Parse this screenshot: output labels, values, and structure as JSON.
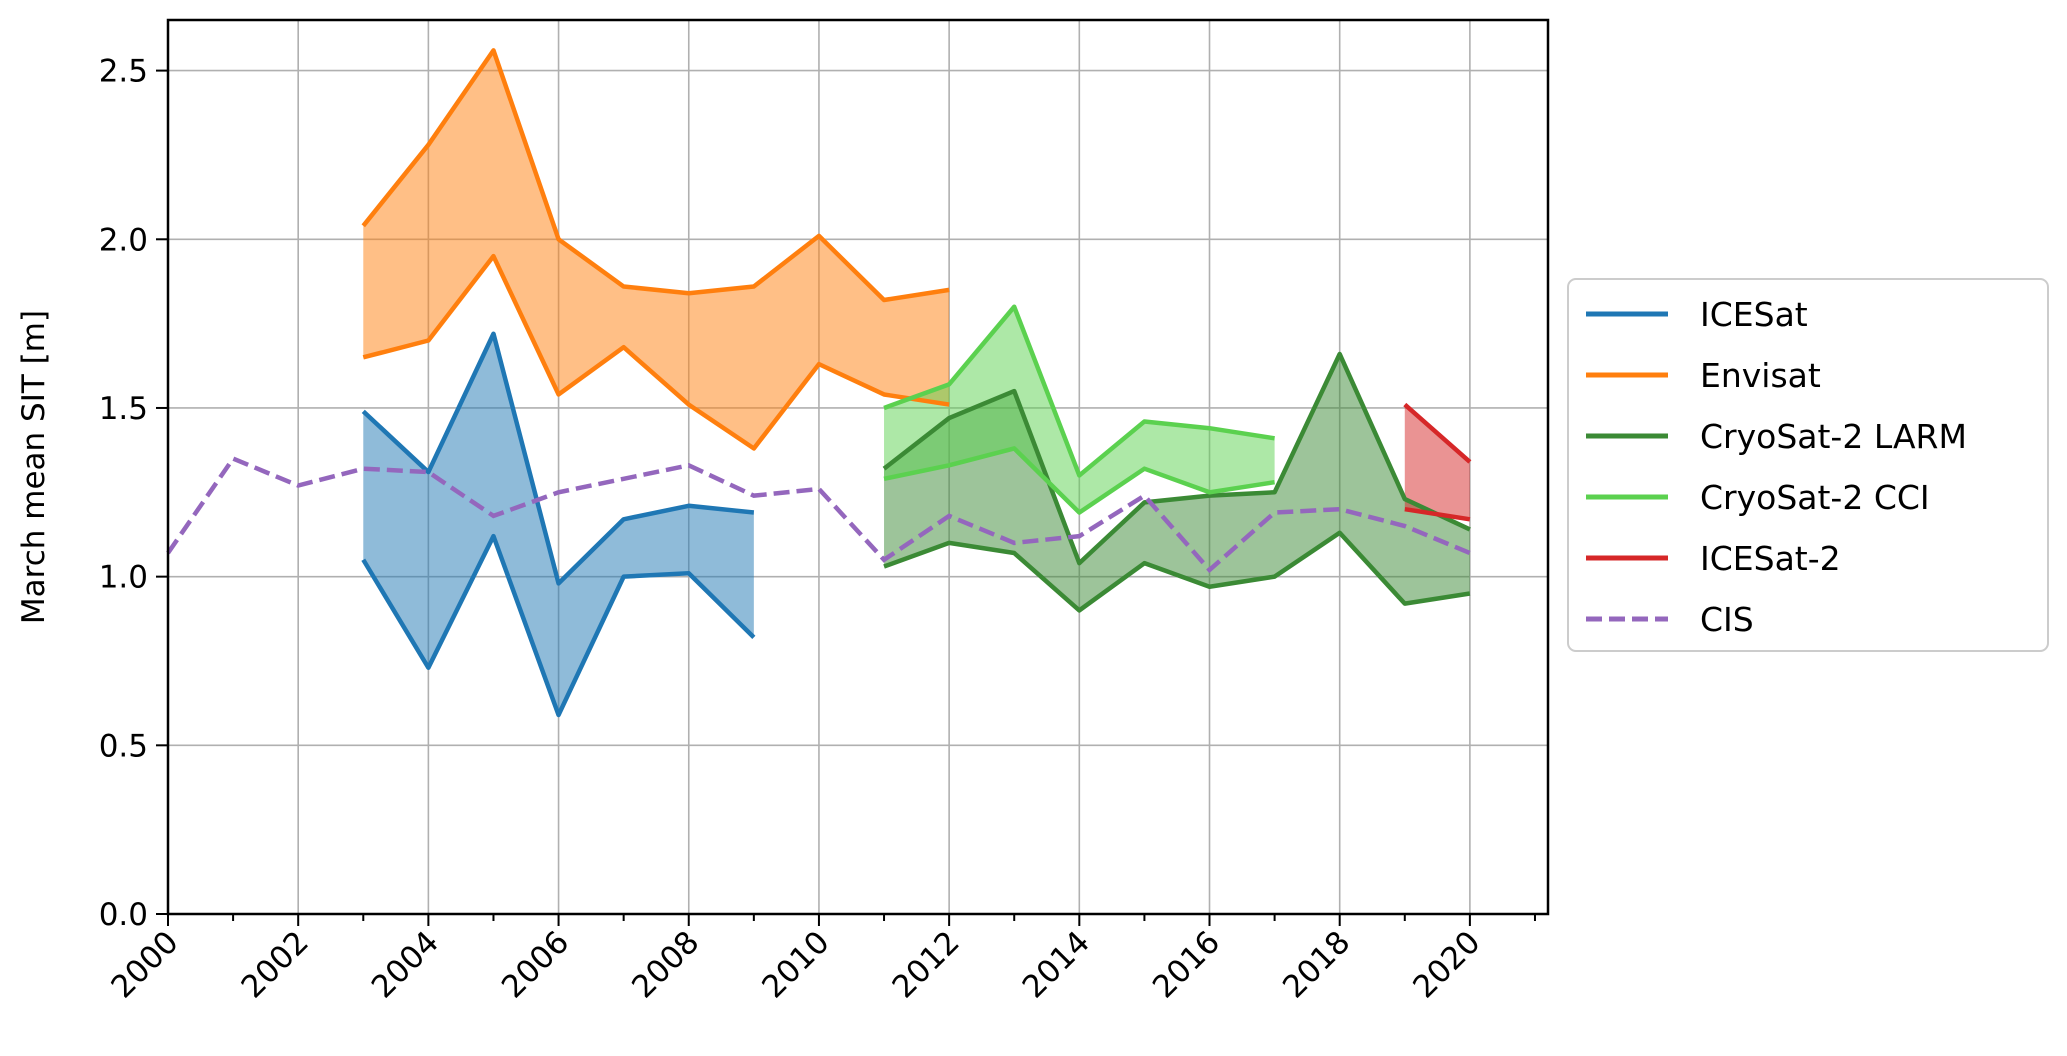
{
  "chart_data": {
    "type": "line",
    "title": "",
    "xlabel": "",
    "ylabel": "March mean SIT [m]",
    "xlim": [
      2000,
      2021.2
    ],
    "ylim": [
      0,
      2.65
    ],
    "xticks": [
      2000,
      2002,
      2004,
      2006,
      2008,
      2010,
      2012,
      2014,
      2016,
      2018,
      2020
    ],
    "yticks": [
      0.0,
      0.5,
      1.0,
      1.5,
      2.0,
      2.5
    ],
    "ytick_labels": [
      "0.0",
      "0.5",
      "1.0",
      "1.5",
      "2.0",
      "2.5"
    ],
    "grid": true,
    "legend_position": "right-outside",
    "series": [
      {
        "name": "ICESat",
        "color": "#1f77b4",
        "x": [
          2003,
          2004,
          2005,
          2006,
          2007,
          2008,
          2009
        ],
        "upper": [
          1.49,
          1.31,
          1.72,
          0.98,
          1.17,
          1.21,
          1.19
        ],
        "lower": [
          1.05,
          0.73,
          1.12,
          0.59,
          1.0,
          1.01,
          0.82
        ]
      },
      {
        "name": "Envisat",
        "color": "#ff7f0e",
        "x": [
          2003,
          2004,
          2005,
          2006,
          2007,
          2008,
          2009,
          2010,
          2011,
          2012
        ],
        "upper": [
          2.04,
          2.28,
          2.56,
          2.0,
          1.86,
          1.84,
          1.86,
          2.01,
          1.82,
          1.85
        ],
        "lower": [
          1.65,
          1.7,
          1.95,
          1.54,
          1.68,
          1.51,
          1.38,
          1.63,
          1.54,
          1.51
        ]
      },
      {
        "name": "CryoSat-2 LARM",
        "color": "#3b8a35",
        "x": [
          2011,
          2012,
          2013,
          2014,
          2015,
          2016,
          2017,
          2018,
          2019,
          2020
        ],
        "upper": [
          1.32,
          1.47,
          1.55,
          1.04,
          1.22,
          1.24,
          1.25,
          1.66,
          1.23,
          1.14
        ],
        "lower": [
          1.03,
          1.1,
          1.07,
          0.9,
          1.04,
          0.97,
          1.0,
          1.13,
          0.92,
          0.95
        ]
      },
      {
        "name": "CryoSat-2 CCI",
        "color": "#5bd14f",
        "x": [
          2011,
          2012,
          2013,
          2014,
          2015,
          2016,
          2017
        ],
        "upper": [
          1.5,
          1.57,
          1.8,
          1.3,
          1.46,
          1.44,
          1.41
        ],
        "lower": [
          1.29,
          1.33,
          1.38,
          1.19,
          1.32,
          1.25,
          1.28
        ]
      },
      {
        "name": "ICESat-2",
        "color": "#d62728",
        "x": [
          2019,
          2020
        ],
        "upper": [
          1.51,
          1.34
        ],
        "lower": [
          1.2,
          1.17
        ]
      },
      {
        "name": "CIS",
        "color": "#9467bd",
        "dashed": true,
        "x": [
          2000,
          2001,
          2002,
          2003,
          2004,
          2005,
          2006,
          2007,
          2008,
          2009,
          2010,
          2011,
          2012,
          2013,
          2014,
          2015,
          2016,
          2017,
          2018,
          2019,
          2020
        ],
        "values": [
          1.07,
          1.35,
          1.27,
          1.32,
          1.31,
          1.18,
          1.25,
          1.29,
          1.33,
          1.24,
          1.26,
          1.05,
          1.18,
          1.1,
          1.12,
          1.24,
          1.02,
          1.19,
          1.2,
          1.15,
          1.07
        ]
      }
    ]
  }
}
